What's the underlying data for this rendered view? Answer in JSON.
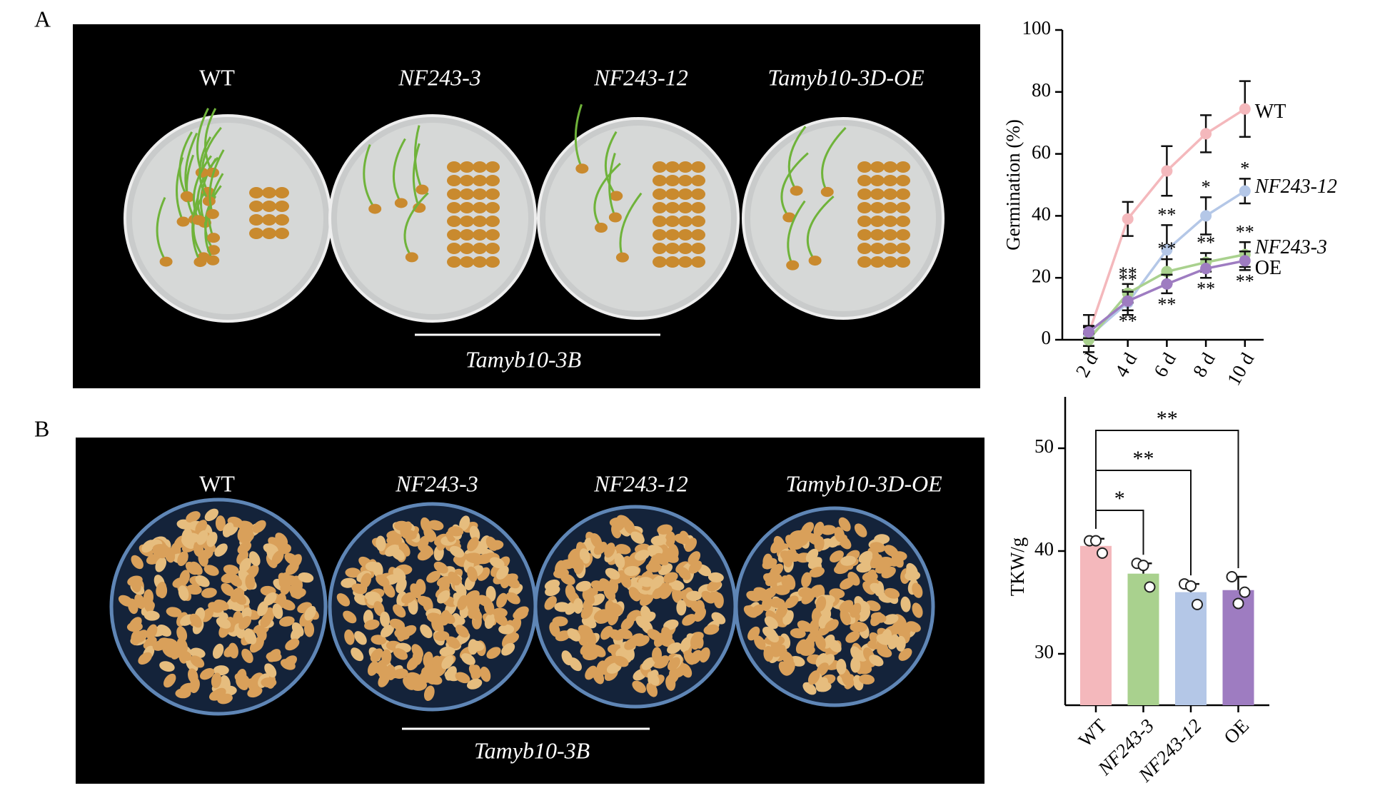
{
  "panels": {
    "a": "A",
    "b": "B"
  },
  "photo_a": {
    "labels": [
      "WT",
      "NF243-3",
      "NF243-12",
      "Tamyb10-3D-OE"
    ],
    "group_label": "Tamyb10-3B"
  },
  "photo_b": {
    "labels": [
      "WT",
      "NF243-3",
      "NF243-12",
      "Tamyb10-3D-OE"
    ],
    "group_label": "Tamyb10-3B"
  },
  "chart_data": [
    {
      "type": "line",
      "y_label": "Germination (%)",
      "categories": [
        "2 d",
        "4 d",
        "6 d",
        "8 d",
        "10 d"
      ],
      "ylim": [
        0,
        100
      ],
      "yticks": [
        0,
        20,
        40,
        60,
        80,
        100
      ],
      "series": [
        {
          "name": "WT",
          "color": "#f4b8bc",
          "values": [
            2,
            39,
            54.5,
            66.5,
            74.5
          ],
          "errors": [
            6,
            5.5,
            8,
            6,
            9
          ]
        },
        {
          "name": "NF243-12",
          "color": "#b4c7e7",
          "values": [
            1,
            12,
            29,
            40,
            48
          ],
          "errors": [
            3,
            4,
            8,
            6,
            4
          ],
          "significance": [
            null,
            "**",
            "**",
            "*",
            "*"
          ]
        },
        {
          "name": "NF243-3",
          "color": "#a9d18e",
          "values": [
            0,
            15,
            22,
            25,
            27.5
          ],
          "errors": [
            2,
            3,
            4,
            3,
            4
          ],
          "significance": [
            null,
            "**",
            "**",
            "**",
            "**"
          ]
        },
        {
          "name": "OE",
          "color": "#9e7cc1",
          "values": [
            2.5,
            12.5,
            18,
            23,
            25.5
          ],
          "errors": [
            2,
            3,
            3,
            3,
            3
          ],
          "significance": [
            null,
            "**",
            "**",
            "**",
            "**"
          ]
        }
      ]
    },
    {
      "type": "bar",
      "y_label": "TKW/g",
      "categories": [
        "WT",
        "NF243-3",
        "NF243-12",
        "OE"
      ],
      "values": [
        40.5,
        37.8,
        36,
        36.2
      ],
      "errors": [
        0.7,
        1,
        0.8,
        1.3
      ],
      "points": [
        [
          41,
          39.8,
          41
        ],
        [
          38.8,
          36.5,
          38.6
        ],
        [
          36.8,
          34.8,
          36.6
        ],
        [
          37.5,
          36,
          34.9
        ]
      ],
      "colors": [
        "#f4b8bc",
        "#a9d18e",
        "#b4c7e7",
        "#9e7cc1"
      ],
      "significance": [
        null,
        "*",
        "**",
        "**"
      ],
      "ylim": [
        25,
        55
      ],
      "yticks": [
        30,
        40,
        50
      ]
    }
  ]
}
